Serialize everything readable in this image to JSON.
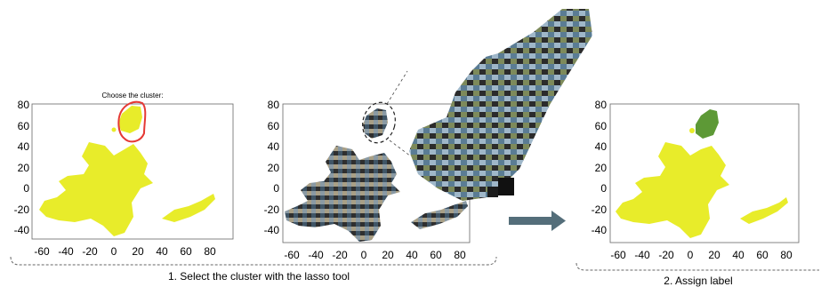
{
  "panel1": {
    "title": "Choose the cluster:",
    "xticks": [
      "-60",
      "-40",
      "-20",
      "0",
      "20",
      "40",
      "60",
      "80"
    ],
    "yticks": [
      "80",
      "60",
      "40",
      "20",
      "0",
      "-20",
      "-40"
    ]
  },
  "panel2": {
    "xticks": [
      "-60",
      "-40",
      "-20",
      "0",
      "20",
      "40",
      "60",
      "80"
    ],
    "yticks": [
      "80",
      "60",
      "40",
      "20",
      "0",
      "-20",
      "-40"
    ]
  },
  "panel3": {
    "xticks": [
      "-60",
      "-40",
      "-20",
      "0",
      "20",
      "40",
      "60",
      "80"
    ],
    "yticks": [
      "80",
      "60",
      "40",
      "20",
      "0",
      "-20",
      "-40"
    ]
  },
  "step1_label": "1. Select the cluster with the lasso tool",
  "step2_label": "2. Assign label",
  "colors": {
    "points": "#e8ec2a",
    "selected": "#5d9936",
    "lasso": "#e53935",
    "arrow": "#546e7a",
    "bracket": "#666666"
  }
}
